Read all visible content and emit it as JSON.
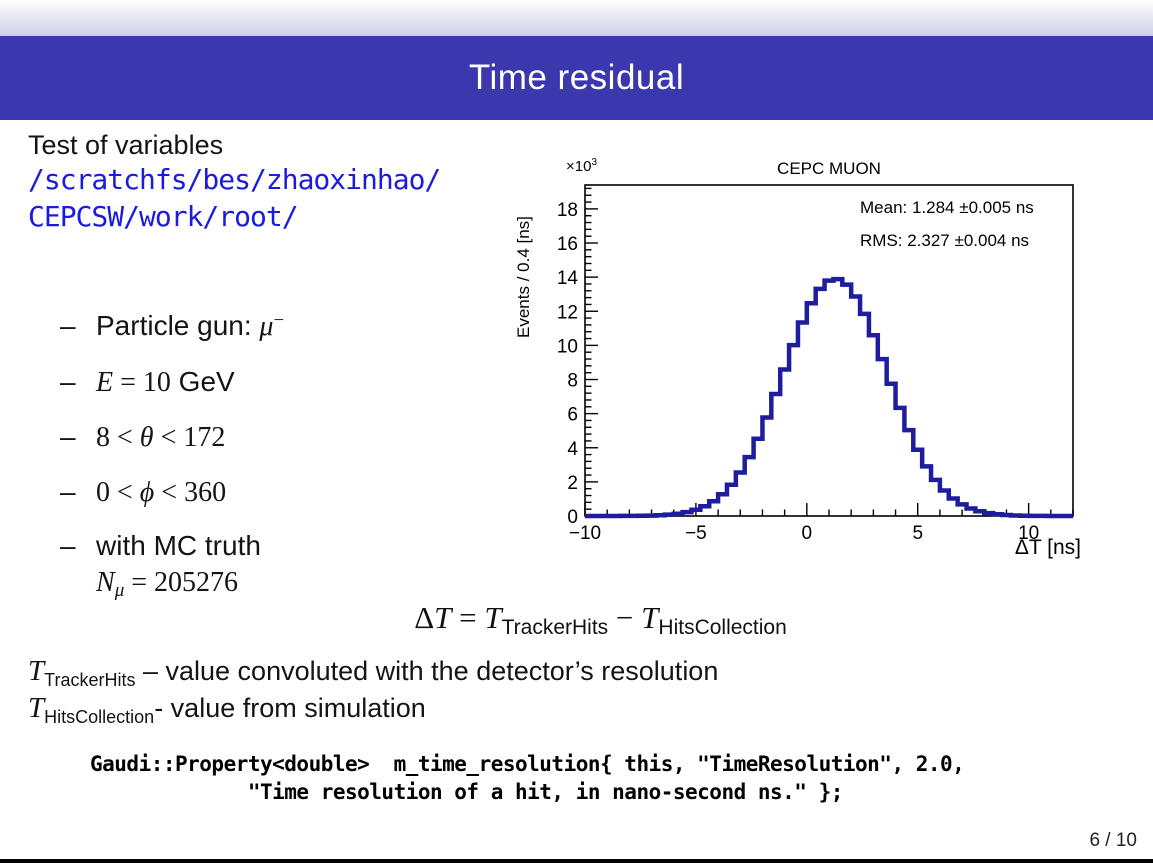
{
  "slide": {
    "title": "Time residual",
    "page": "6 / 10"
  },
  "intro": {
    "heading": "Test of variables",
    "path_line1": "/scratchfs/bes/zhaoxinhao/",
    "path_line2": "CEPCSW/work/root/"
  },
  "bullets": {
    "dash": "–",
    "b1": {
      "text": "Particle gun: ",
      "mu": "μ",
      "sup": "−"
    },
    "b2": {
      "E": "E",
      "mid": " = 10",
      "unit": " GeV"
    },
    "b3": {
      "pre": "8 < ",
      "theta": "θ",
      "post": " < 172"
    },
    "b4": {
      "pre": "0 < ",
      "phi": "ϕ",
      "post": " < 360"
    },
    "b5": {
      "text": "with MC truth"
    },
    "b6": {
      "N": "N",
      "sub": "μ",
      "post": " = 205276"
    }
  },
  "equation": {
    "delta": "Δ",
    "T1": "T",
    "eq": " = ",
    "T2": "T",
    "sub1": "TrackerHits",
    "minus": " − ",
    "T3": "T",
    "sub2": "HitsCollection"
  },
  "defs": {
    "l1": {
      "T": "T",
      "sub": "TrackerHits",
      "rest": " – value convoluted with the detector’s resolution"
    },
    "l2": {
      "T": "T",
      "sub": "HitsCollection",
      "rest": "- value from simulation"
    }
  },
  "code": {
    "line1": "Gaudi::Property<double>  m_time_resolution{ this, \"TimeResolution\", 2.0,",
    "line2": "             \"Time resolution of a hit, in nano-second ns.\" };"
  },
  "chart": {
    "title": "CEPC MUON",
    "scale": "×10",
    "scale_exp": "3",
    "stats_mean": "Mean: 1.284 ±0.005 ns",
    "stats_rms": "RMS: 2.327 ±0.004 ns",
    "y_title": "Events / 0.4 [ns]",
    "x_title": "ΔT [ns]"
  },
  "chart_data": {
    "type": "bar",
    "subtype": "step-histogram",
    "title": "CEPC MUON",
    "xlabel": "ΔT [ns]",
    "ylabel": "Events / 0.4 [ns]",
    "y_scale_factor": 1000,
    "xlim": [
      -10,
      12
    ],
    "ylim": [
      0,
      19.4
    ],
    "x_major_ticks": [
      -10,
      -5,
      0,
      5,
      10
    ],
    "x_minor_step": 1,
    "y_major_ticks": [
      0,
      2,
      4,
      6,
      8,
      10,
      12,
      14,
      16,
      18
    ],
    "y_minor_step": 0.4,
    "bin_start": -10,
    "bin_width": 0.4,
    "values_thousands": [
      0,
      0,
      0.001,
      0.002,
      0.004,
      0.007,
      0.013,
      0.025,
      0.045,
      0.079,
      0.135,
      0.225,
      0.363,
      0.569,
      0.865,
      1.278,
      1.832,
      2.552,
      3.451,
      4.531,
      5.776,
      7.147,
      8.586,
      10.016,
      11.342,
      12.471,
      13.312,
      13.797,
      13.883,
      13.562,
      12.863,
      11.846,
      10.591,
      9.194,
      7.748,
      6.338,
      5.036,
      3.884,
      2.909,
      2.114,
      1.493,
      1.023,
      0.681,
      0.44,
      0.276,
      0.168,
      0.099,
      0.057,
      0.032,
      0.017,
      0.009,
      0.005,
      0.002,
      0.001,
      0.001
    ],
    "annotations": [
      "Mean: 1.284 ±0.005 ns",
      "RMS: 2.327 ±0.004 ns"
    ],
    "legend": "none",
    "grid": false,
    "line_color": "#1d1d9e"
  },
  "colors": {
    "title_bar": "#3b38ae",
    "path_text": "#1a1ae0",
    "hist_line": "#1d1d9e"
  }
}
